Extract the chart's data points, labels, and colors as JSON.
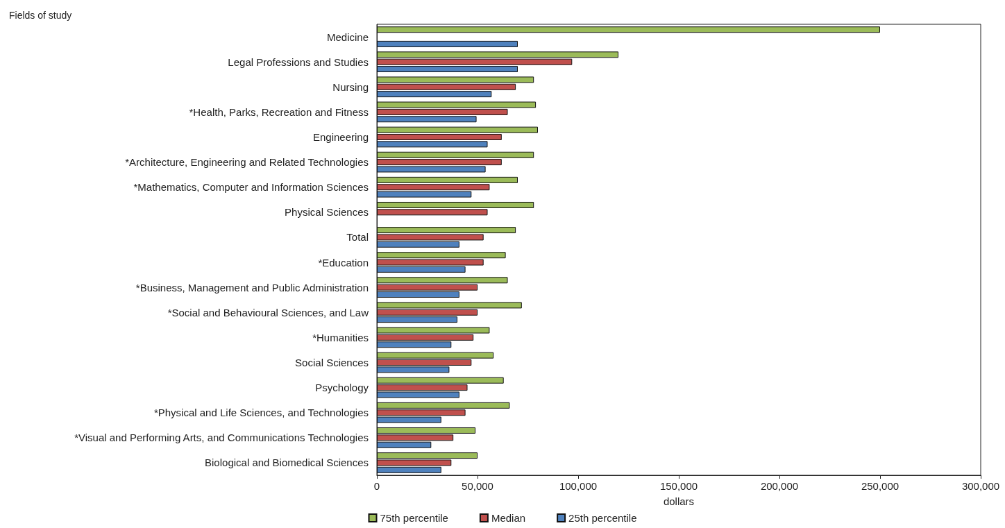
{
  "chart_data": {
    "type": "bar",
    "orientation": "horizontal",
    "ylabel": "Fields of study",
    "xlabel": "dollars",
    "categories": [
      "Medicine",
      "Legal Professions and Studies",
      "Nursing",
      "*Health, Parks, Recreation and Fitness",
      "Engineering",
      "*Architecture, Engineering and Related Technologies",
      "*Mathematics, Computer and Information Sciences",
      "Physical Sciences",
      "Total",
      "*Education",
      "*Business, Management and Public Administration",
      "*Social and Behavioural Sciences, and Law",
      "*Humanities",
      "Social Sciences",
      "Psychology",
      "*Physical and Life Sciences, and Technologies",
      "*Visual and Performing Arts, and Communications Technologies",
      "Biological and Biomedical Sciences"
    ],
    "series": [
      {
        "name": "75th percentile",
        "color": "#9bbb59",
        "values": [
          250000,
          120000,
          78000,
          79000,
          80000,
          78000,
          70000,
          78000,
          69000,
          64000,
          65000,
          72000,
          56000,
          58000,
          63000,
          66000,
          49000,
          50000
        ]
      },
      {
        "name": "Median",
        "color": "#c0504d",
        "values": [
          null,
          97000,
          69000,
          65000,
          62000,
          62000,
          56000,
          55000,
          53000,
          53000,
          50000,
          50000,
          48000,
          47000,
          45000,
          44000,
          38000,
          37000
        ]
      },
      {
        "name": "25th percentile",
        "color": "#4f81bd",
        "values": [
          70000,
          70000,
          57000,
          49500,
          55000,
          54000,
          47000,
          null,
          41000,
          44000,
          41000,
          40000,
          37000,
          36000,
          41000,
          32000,
          27000,
          32000
        ]
      }
    ],
    "xlim": [
      0,
      300000
    ],
    "xticks": [
      0,
      {
        "value": 50000,
        "label": "50,000"
      },
      {
        "value": 100000,
        "label": "100,000"
      },
      {
        "value": 150000,
        "label": "150,000"
      },
      {
        "value": 200000,
        "label": "200,000"
      },
      {
        "value": 250000,
        "label": "250,000"
      },
      {
        "value": 300000,
        "label": "300,000"
      }
    ],
    "grid": false,
    "legend": "bottom"
  }
}
